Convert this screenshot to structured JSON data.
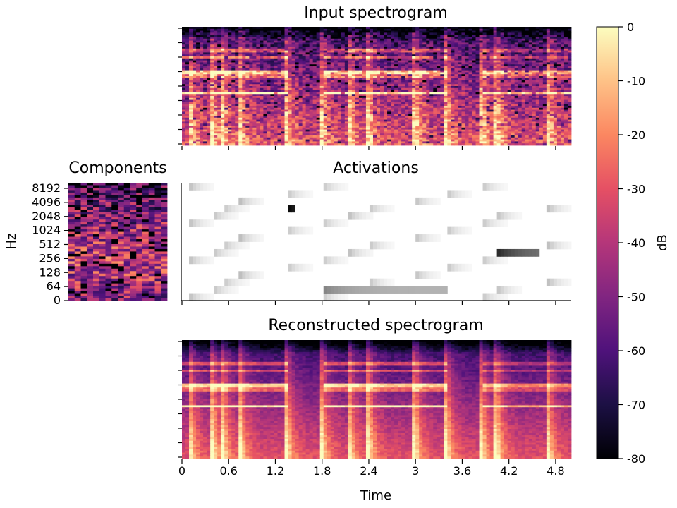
{
  "chart_data": [
    {
      "type": "heatmap",
      "title": "Input spectrogram",
      "xlim": [
        0,
        5.0
      ],
      "x_ticks": [
        0,
        0.6,
        1.2,
        1.8,
        2.4,
        3,
        3.6,
        4.2,
        4.8
      ],
      "x_tick_labels_shown": false,
      "y_tick_labels_shown": false,
      "colormap": "magma",
      "value_range_db": [
        -80,
        0
      ],
      "onset_times": [
        0.1,
        0.4,
        0.53,
        0.75,
        1.35,
        1.8,
        2.15,
        2.4,
        3.0,
        3.4,
        3.85,
        4.05,
        4.7
      ],
      "harmonic_lines": [
        {
          "t_start": 0.0,
          "t_end": 1.35,
          "level": "bright"
        },
        {
          "t_start": 1.8,
          "t_end": 3.4,
          "level": "bright"
        },
        {
          "t_start": 3.85,
          "t_end": 5.0,
          "level": "medium"
        }
      ]
    },
    {
      "type": "heatmap",
      "title": "Components",
      "ylabel": "Hz",
      "y_ticks": [
        "0",
        "64",
        "128",
        "256",
        "512",
        "1024",
        "2048",
        "4096",
        "8192"
      ],
      "n_components": 16,
      "colormap": "magma",
      "value_range_db": [
        -80,
        0
      ]
    },
    {
      "type": "heatmap",
      "title": "Activations",
      "xlim": [
        0,
        5.0
      ],
      "x_ticks": [
        0,
        0.6,
        1.2,
        1.8,
        2.4,
        3,
        3.6,
        4.2,
        4.8
      ],
      "x_tick_labels_shown": false,
      "colormap": "gray_r",
      "n_components": 16,
      "strongest": [
        {
          "component": 12,
          "t_start": 1.35,
          "t_end": 1.45,
          "intensity": 1.0
        },
        {
          "component": 6,
          "t_start": 4.05,
          "t_end": 4.6,
          "intensity": 0.85
        },
        {
          "component": 1,
          "t_start": 1.8,
          "t_end": 3.4,
          "intensity": 0.5
        }
      ]
    },
    {
      "type": "heatmap",
      "title": "Reconstructed spectrogram",
      "xlabel": "Time",
      "xlim": [
        0,
        5.0
      ],
      "x_ticks": [
        0,
        0.6,
        1.2,
        1.8,
        2.4,
        3,
        3.6,
        4.2,
        4.8
      ],
      "x_tick_labels": [
        "0",
        "0.6",
        "1.2",
        "1.8",
        "2.4",
        "3",
        "3.6",
        "4.2",
        "4.8"
      ],
      "colormap": "magma",
      "value_range_db": [
        -80,
        0
      ]
    },
    {
      "type": "colorbar",
      "label": "dB",
      "range": [
        -80,
        0
      ],
      "ticks": [
        0,
        -10,
        -20,
        -30,
        -40,
        -50,
        -60,
        -70,
        -80
      ],
      "tick_labels": [
        "0",
        "-10",
        "-20",
        "-30",
        "-40",
        "-50",
        "-60",
        "-70",
        "-80"
      ],
      "colormap": "magma"
    }
  ]
}
